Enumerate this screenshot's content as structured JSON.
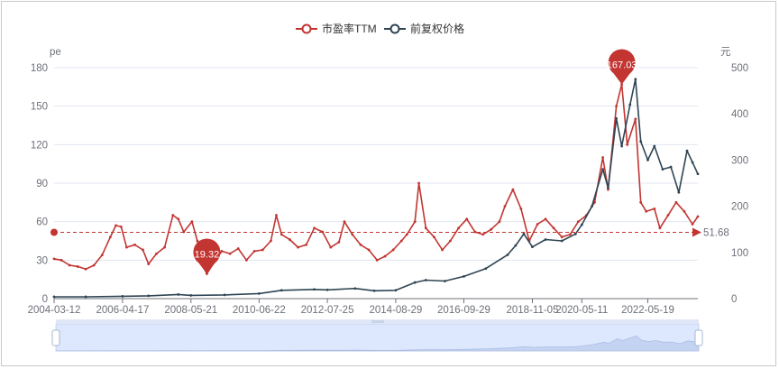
{
  "chart_data": {
    "type": "line",
    "legend": {
      "position": "top-center",
      "items": [
        "市盈率TTM",
        "前复权价格"
      ]
    },
    "x_tick_labels": [
      "2004-03-12",
      "2006-04-17",
      "2008-05-21",
      "2010-06-22",
      "2012-07-25",
      "2014-08-29",
      "2016-09-29",
      "2018-11-05",
      "2020-05-11",
      "2022-05-19"
    ],
    "x_range": [
      "2004-03-12",
      "2023-11-30"
    ],
    "y_left": {
      "unit": "pe",
      "range": [
        0,
        180
      ],
      "ticks": [
        0,
        30,
        60,
        90,
        120,
        150,
        180
      ]
    },
    "y_right": {
      "unit": "元",
      "range": [
        0,
        500
      ],
      "ticks": [
        0,
        100,
        200,
        300,
        400,
        500
      ]
    },
    "grid": "horizontal",
    "series": [
      {
        "name": "市盈率TTM",
        "axis": "left",
        "color": "#c23531",
        "points": [
          [
            "2004-03-12",
            31
          ],
          [
            "2004-06-01",
            30
          ],
          [
            "2004-09-01",
            26
          ],
          [
            "2004-12-01",
            25
          ],
          [
            "2005-03-01",
            23
          ],
          [
            "2005-06-01",
            26
          ],
          [
            "2005-09-01",
            34
          ],
          [
            "2005-12-01",
            48
          ],
          [
            "2006-02-01",
            57
          ],
          [
            "2006-04-01",
            56
          ],
          [
            "2006-06-01",
            40
          ],
          [
            "2006-09-01",
            42
          ],
          [
            "2006-12-01",
            38
          ],
          [
            "2007-02-01",
            27
          ],
          [
            "2007-05-01",
            35
          ],
          [
            "2007-08-01",
            40
          ],
          [
            "2007-11-01",
            65
          ],
          [
            "2008-01-01",
            62
          ],
          [
            "2008-03-01",
            52
          ],
          [
            "2008-06-01",
            60
          ],
          [
            "2008-08-01",
            45
          ],
          [
            "2008-10-01",
            26
          ],
          [
            "2008-11-15",
            19.32
          ],
          [
            "2009-02-01",
            28
          ],
          [
            "2009-05-01",
            37
          ],
          [
            "2009-08-01",
            35
          ],
          [
            "2009-11-01",
            39
          ],
          [
            "2010-02-01",
            30
          ],
          [
            "2010-05-01",
            37
          ],
          [
            "2010-08-01",
            38
          ],
          [
            "2010-11-01",
            45
          ],
          [
            "2011-01-01",
            65
          ],
          [
            "2011-03-01",
            50
          ],
          [
            "2011-06-01",
            46
          ],
          [
            "2011-09-01",
            40
          ],
          [
            "2011-12-01",
            42
          ],
          [
            "2012-03-01",
            55
          ],
          [
            "2012-06-01",
            52
          ],
          [
            "2012-09-01",
            40
          ],
          [
            "2012-12-01",
            44
          ],
          [
            "2013-02-01",
            60
          ],
          [
            "2013-05-01",
            50
          ],
          [
            "2013-08-01",
            42
          ],
          [
            "2013-11-01",
            38
          ],
          [
            "2014-02-01",
            30
          ],
          [
            "2014-05-01",
            33
          ],
          [
            "2014-08-01",
            38
          ],
          [
            "2014-11-01",
            45
          ],
          [
            "2015-01-01",
            50
          ],
          [
            "2015-04-01",
            60
          ],
          [
            "2015-05-15",
            90
          ],
          [
            "2015-08-01",
            55
          ],
          [
            "2015-11-01",
            48
          ],
          [
            "2016-02-01",
            38
          ],
          [
            "2016-05-01",
            45
          ],
          [
            "2016-08-01",
            55
          ],
          [
            "2016-11-01",
            62
          ],
          [
            "2017-02-01",
            52
          ],
          [
            "2017-05-01",
            50
          ],
          [
            "2017-08-01",
            54
          ],
          [
            "2017-11-01",
            60
          ],
          [
            "2018-01-01",
            72
          ],
          [
            "2018-04-01",
            85
          ],
          [
            "2018-07-01",
            70
          ],
          [
            "2018-10-01",
            45
          ],
          [
            "2019-01-01",
            58
          ],
          [
            "2019-04-01",
            62
          ],
          [
            "2019-07-01",
            55
          ],
          [
            "2019-10-01",
            48
          ],
          [
            "2020-01-01",
            50
          ],
          [
            "2020-04-01",
            60
          ],
          [
            "2020-07-01",
            65
          ],
          [
            "2020-10-01",
            75
          ],
          [
            "2021-01-01",
            110
          ],
          [
            "2021-03-01",
            85
          ],
          [
            "2021-06-01",
            150
          ],
          [
            "2021-08-01",
            167.03
          ],
          [
            "2021-10-01",
            120
          ],
          [
            "2022-01-01",
            140
          ],
          [
            "2022-03-01",
            75
          ],
          [
            "2022-05-01",
            68
          ],
          [
            "2022-08-01",
            70
          ],
          [
            "2022-10-01",
            55
          ],
          [
            "2023-01-01",
            65
          ],
          [
            "2023-04-01",
            75
          ],
          [
            "2023-07-01",
            68
          ],
          [
            "2023-10-01",
            58
          ],
          [
            "2023-11-30",
            64
          ]
        ]
      },
      {
        "name": "前复权价格",
        "axis": "right",
        "color": "#2f4554",
        "points": [
          [
            "2004-03-12",
            4
          ],
          [
            "2005-03-01",
            4
          ],
          [
            "2006-04-17",
            5
          ],
          [
            "2007-02-01",
            6
          ],
          [
            "2008-01-01",
            9
          ],
          [
            "2008-05-21",
            7
          ],
          [
            "2009-06-01",
            8
          ],
          [
            "2010-06-22",
            11
          ],
          [
            "2011-03-01",
            18
          ],
          [
            "2012-03-01",
            20
          ],
          [
            "2012-07-25",
            19
          ],
          [
            "2013-06-01",
            22
          ],
          [
            "2014-01-01",
            17
          ],
          [
            "2014-08-29",
            18
          ],
          [
            "2015-04-01",
            35
          ],
          [
            "2015-08-01",
            40
          ],
          [
            "2016-03-01",
            38
          ],
          [
            "2016-09-29",
            48
          ],
          [
            "2017-06-01",
            65
          ],
          [
            "2018-02-01",
            95
          ],
          [
            "2018-05-01",
            115
          ],
          [
            "2018-08-01",
            140
          ],
          [
            "2018-11-05",
            112
          ],
          [
            "2019-04-01",
            128
          ],
          [
            "2019-10-01",
            125
          ],
          [
            "2020-03-01",
            140
          ],
          [
            "2020-05-11",
            160
          ],
          [
            "2020-09-01",
            200
          ],
          [
            "2021-01-01",
            280
          ],
          [
            "2021-03-01",
            240
          ],
          [
            "2021-06-01",
            390
          ],
          [
            "2021-08-01",
            330
          ],
          [
            "2021-11-01",
            420
          ],
          [
            "2022-01-01",
            475
          ],
          [
            "2022-03-01",
            340
          ],
          [
            "2022-05-19",
            300
          ],
          [
            "2022-08-01",
            330
          ],
          [
            "2022-11-01",
            280
          ],
          [
            "2023-02-01",
            285
          ],
          [
            "2023-05-01",
            230
          ],
          [
            "2023-08-01",
            320
          ],
          [
            "2023-10-01",
            295
          ],
          [
            "2023-11-30",
            270
          ]
        ]
      }
    ],
    "mark_points": [
      {
        "series": "市盈率TTM",
        "label": "167.03",
        "date": "2021-08-01",
        "value": 167.03,
        "kind": "max"
      },
      {
        "series": "市盈率TTM",
        "label": "19.32",
        "date": "2008-11-15",
        "value": 19.32,
        "kind": "min"
      }
    ],
    "mark_line": {
      "series": "市盈率TTM",
      "label": "51.68",
      "value": 51.68,
      "kind": "average"
    }
  }
}
